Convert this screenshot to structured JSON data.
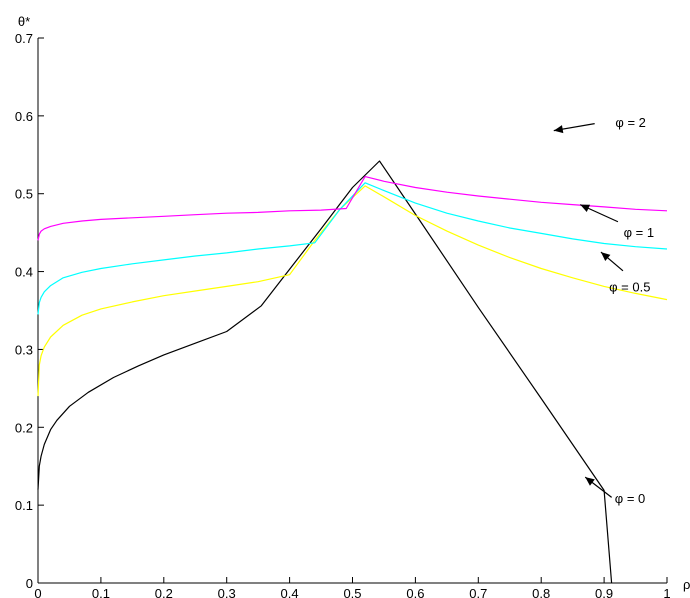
{
  "chart_data": {
    "type": "line",
    "xlabel": "ρ",
    "ylabel": "θ*",
    "xlim": [
      0,
      1
    ],
    "ylim": [
      0,
      0.7
    ],
    "grid": false,
    "xticks": [
      "0",
      "0.1",
      "0.2",
      "0.3",
      "0.4",
      "0.5",
      "0.6",
      "0.7",
      "0.8",
      "0.9",
      "1"
    ],
    "yticks": [
      "0",
      "0.1",
      "0.2",
      "0.3",
      "0.4",
      "0.5",
      "0.6",
      "0.7"
    ],
    "series": [
      {
        "name": "φ = 0",
        "color": "#000000",
        "x": [
          0,
          0.002,
          0.005,
          0.01,
          0.02,
          0.03,
          0.05,
          0.08,
          0.12,
          0.16,
          0.2,
          0.25,
          0.3,
          0.355,
          0.4,
          0.45,
          0.5,
          0.543,
          0.6,
          0.7,
          0.8,
          0.9,
          0.912
        ],
        "y": [
          0.12,
          0.15,
          0.163,
          0.178,
          0.197,
          0.209,
          0.227,
          0.245,
          0.264,
          0.279,
          0.293,
          0.308,
          0.323,
          0.356,
          0.403,
          0.455,
          0.508,
          0.542,
          0.474,
          0.354,
          0.237,
          0.119,
          0.0
        ]
      },
      {
        "name": "φ = 0.5",
        "color": "#ffff00",
        "x": [
          0,
          0.002,
          0.005,
          0.01,
          0.02,
          0.04,
          0.07,
          0.1,
          0.15,
          0.2,
          0.25,
          0.3,
          0.35,
          0.4,
          0.44,
          0.48,
          0.52,
          0.55,
          0.6,
          0.65,
          0.7,
          0.75,
          0.8,
          0.85,
          0.9,
          0.95,
          1.0
        ],
        "y": [
          0.24,
          0.28,
          0.292,
          0.303,
          0.316,
          0.331,
          0.344,
          0.352,
          0.361,
          0.369,
          0.375,
          0.381,
          0.387,
          0.396,
          0.44,
          0.48,
          0.51,
          0.496,
          0.472,
          0.452,
          0.434,
          0.418,
          0.404,
          0.392,
          0.381,
          0.372,
          0.364
        ]
      },
      {
        "name": "φ = 1",
        "color": "#00ffff",
        "x": [
          0,
          0.002,
          0.005,
          0.01,
          0.02,
          0.04,
          0.07,
          0.1,
          0.15,
          0.2,
          0.25,
          0.3,
          0.35,
          0.4,
          0.44,
          0.48,
          0.52,
          0.55,
          0.6,
          0.65,
          0.7,
          0.75,
          0.8,
          0.85,
          0.9,
          0.95,
          1.0
        ],
        "y": [
          0.345,
          0.36,
          0.367,
          0.374,
          0.382,
          0.392,
          0.399,
          0.404,
          0.41,
          0.415,
          0.42,
          0.424,
          0.429,
          0.433,
          0.437,
          0.48,
          0.514,
          0.504,
          0.488,
          0.475,
          0.465,
          0.456,
          0.449,
          0.442,
          0.436,
          0.432,
          0.429
        ]
      },
      {
        "name": "φ = 2",
        "color": "#ff00ff",
        "x": [
          0,
          0.002,
          0.005,
          0.01,
          0.02,
          0.04,
          0.07,
          0.1,
          0.15,
          0.2,
          0.25,
          0.3,
          0.35,
          0.4,
          0.45,
          0.49,
          0.52,
          0.55,
          0.6,
          0.65,
          0.7,
          0.75,
          0.8,
          0.85,
          0.9,
          0.95,
          1.0
        ],
        "y": [
          0.44,
          0.448,
          0.452,
          0.455,
          0.458,
          0.462,
          0.465,
          0.467,
          0.469,
          0.471,
          0.473,
          0.475,
          0.476,
          0.478,
          0.479,
          0.481,
          0.522,
          0.516,
          0.508,
          0.502,
          0.497,
          0.493,
          0.489,
          0.486,
          0.483,
          0.48,
          0.478
        ]
      }
    ],
    "annotations": [
      {
        "text": "φ = 2",
        "x": 0.918,
        "y": 0.592,
        "arrow_from": [
          0.885,
          0.59
        ],
        "arrow_to": [
          0.82,
          0.581
        ]
      },
      {
        "text": "φ = 1",
        "x": 0.931,
        "y": 0.451,
        "arrow_from": [
          0.922,
          0.464
        ],
        "arrow_to": [
          0.862,
          0.486
        ]
      },
      {
        "text": "φ = 0.5",
        "x": 0.908,
        "y": 0.381,
        "arrow_from": [
          0.93,
          0.401
        ],
        "arrow_to": [
          0.895,
          0.425
        ]
      },
      {
        "text": "φ = 0",
        "x": 0.917,
        "y": 0.109,
        "arrow_from": [
          0.912,
          0.11
        ],
        "arrow_to": [
          0.87,
          0.136
        ]
      }
    ]
  }
}
